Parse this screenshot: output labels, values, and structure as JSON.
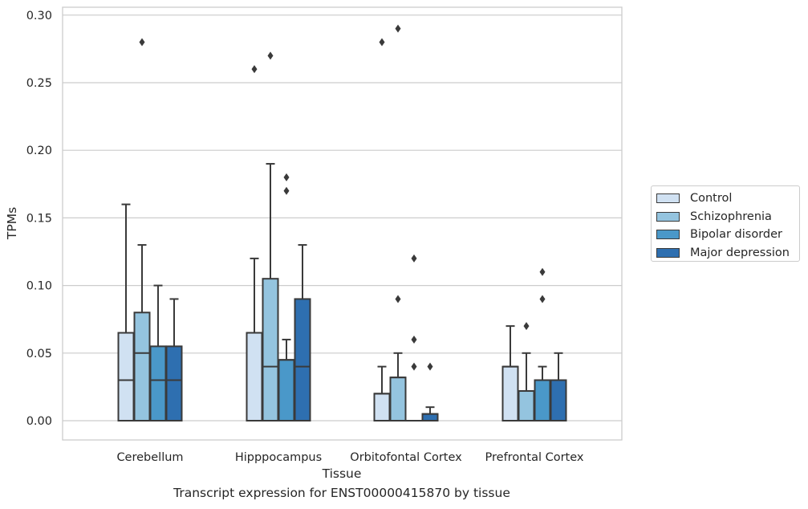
{
  "chart_data": {
    "type": "box",
    "xlabel": "Tissue",
    "ylabel": "TPMs",
    "ylim": [
      -0.014,
      0.305
    ],
    "yticks": [
      0.0,
      0.05,
      0.1,
      0.15,
      0.2,
      0.25,
      0.3
    ],
    "ytick_labels": [
      "0.00",
      "0.05",
      "0.10",
      "0.15",
      "0.20",
      "0.25",
      "0.30"
    ],
    "grid": "horizontal",
    "legend_position": "right",
    "categories": [
      "Cerebellum",
      "Hipppocampus",
      "Orbitofontal Cortex",
      "Prefrontal Cortex"
    ],
    "series": [
      {
        "name": "Control",
        "color": "#d0e1f2",
        "boxes": [
          {
            "q1": 0.0,
            "median": 0.03,
            "q3": 0.065,
            "whisker_low": 0.0,
            "whisker_high": 0.16,
            "outliers": []
          },
          {
            "q1": 0.0,
            "median": 0.065,
            "q3": 0.065,
            "whisker_low": 0.0,
            "whisker_high": 0.12,
            "outliers": [
              0.26
            ]
          },
          {
            "q1": 0.0,
            "median": 0.02,
            "q3": 0.02,
            "whisker_low": 0.0,
            "whisker_high": 0.04,
            "outliers": [
              0.28
            ]
          },
          {
            "q1": 0.0,
            "median": 0.04,
            "q3": 0.04,
            "whisker_low": 0.0,
            "whisker_high": 0.07,
            "outliers": []
          }
        ]
      },
      {
        "name": "Schizophrenia",
        "color": "#94c4df",
        "boxes": [
          {
            "q1": 0.0,
            "median": 0.05,
            "q3": 0.08,
            "whisker_low": 0.0,
            "whisker_high": 0.13,
            "outliers": [
              0.28
            ]
          },
          {
            "q1": 0.0,
            "median": 0.04,
            "q3": 0.105,
            "whisker_low": 0.0,
            "whisker_high": 0.19,
            "outliers": [
              0.27
            ]
          },
          {
            "q1": 0.0,
            "median": 0.032,
            "q3": 0.032,
            "whisker_low": 0.0,
            "whisker_high": 0.05,
            "outliers": [
              0.09,
              0.29
            ]
          },
          {
            "q1": 0.0,
            "median": 0.022,
            "q3": 0.022,
            "whisker_low": 0.0,
            "whisker_high": 0.05,
            "outliers": [
              0.07
            ]
          }
        ]
      },
      {
        "name": "Bipolar disorder",
        "color": "#4a98c9",
        "boxes": [
          {
            "q1": 0.0,
            "median": 0.03,
            "q3": 0.055,
            "whisker_low": 0.0,
            "whisker_high": 0.1,
            "outliers": []
          },
          {
            "q1": 0.0,
            "median": 0.045,
            "q3": 0.045,
            "whisker_low": 0.0,
            "whisker_high": 0.06,
            "outliers": [
              0.17,
              0.18
            ]
          },
          {
            "q1": 0.0,
            "median": 0.0,
            "q3": 0.0,
            "whisker_low": 0.0,
            "whisker_high": 0.0,
            "outliers": [
              0.04,
              0.06,
              0.12
            ]
          },
          {
            "q1": 0.0,
            "median": 0.03,
            "q3": 0.03,
            "whisker_low": 0.0,
            "whisker_high": 0.04,
            "outliers": [
              0.09,
              0.11
            ]
          }
        ]
      },
      {
        "name": "Major depression",
        "color": "#2e6fb0",
        "boxes": [
          {
            "q1": 0.0,
            "median": 0.03,
            "q3": 0.055,
            "whisker_low": 0.0,
            "whisker_high": 0.09,
            "outliers": []
          },
          {
            "q1": 0.0,
            "median": 0.04,
            "q3": 0.09,
            "whisker_low": 0.0,
            "whisker_high": 0.13,
            "outliers": []
          },
          {
            "q1": 0.0,
            "median": 0.005,
            "q3": 0.005,
            "whisker_low": 0.0,
            "whisker_high": 0.01,
            "outliers": [
              0.04
            ]
          },
          {
            "q1": 0.0,
            "median": 0.03,
            "q3": 0.03,
            "whisker_low": 0.0,
            "whisker_high": 0.05,
            "outliers": []
          }
        ]
      }
    ]
  },
  "caption": "Transcript expression for ENST00000415870 by tissue"
}
